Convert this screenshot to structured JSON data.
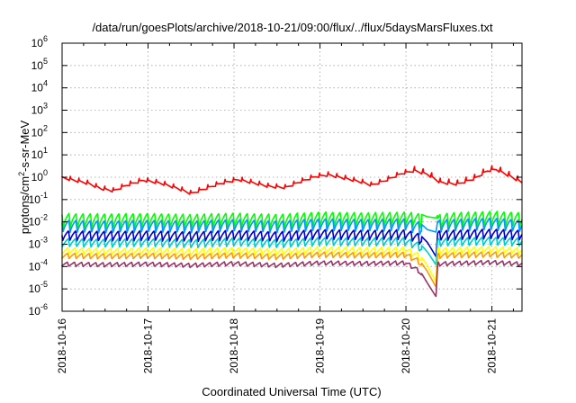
{
  "chart_data": {
    "type": "line",
    "title": "/data/run/goesPlots/archive/2018-10-21/09:00/flux/../flux/5daysMarsFluxes.txt",
    "xlabel": "Coordinated Universal Time (UTC)",
    "ylabel": {
      "base": "protons/cm",
      "sup": "2",
      "rest": "-s-sr-MeV"
    },
    "x_range": [
      "2018-10-16",
      "2018-10-21 09:00"
    ],
    "x_range_days": [
      0,
      5.35
    ],
    "x_tick_labels": [
      "2018-10-16",
      "2018-10-17",
      "2018-10-18",
      "2018-10-19",
      "2018-10-20",
      "2018-10-21"
    ],
    "x_tick_days": [
      0,
      1,
      2,
      3,
      4,
      5
    ],
    "y_scale": "log",
    "ylim": [
      1e-06,
      1000000
    ],
    "y_ticks": [
      {
        "base": "10",
        "exp": "-6"
      },
      {
        "base": "10",
        "exp": "-5"
      },
      {
        "base": "10",
        "exp": "-4"
      },
      {
        "base": "10",
        "exp": "-3"
      },
      {
        "base": "10",
        "exp": "-2"
      },
      {
        "base": "10",
        "exp": "-1"
      },
      {
        "base": "10",
        "exp": "0"
      },
      {
        "base": "10",
        "exp": "1"
      },
      {
        "base": "10",
        "exp": "2"
      },
      {
        "base": "10",
        "exp": "3"
      },
      {
        "base": "10",
        "exp": "4"
      },
      {
        "base": "10",
        "exp": "5"
      },
      {
        "base": "10",
        "exp": "6"
      }
    ],
    "grid": true,
    "series": [
      {
        "color": "#ff0000",
        "kind": "slow",
        "period_days": 0.1,
        "points": [
          [
            0,
            0.98
          ],
          [
            0.3,
            0.55
          ],
          [
            0.45,
            0.32
          ],
          [
            0.6,
            0.25
          ],
          [
            0.75,
            0.45
          ],
          [
            0.95,
            0.75
          ],
          [
            1.15,
            0.55
          ],
          [
            1.35,
            0.32
          ],
          [
            1.5,
            0.19
          ],
          [
            1.65,
            0.3
          ],
          [
            1.85,
            0.55
          ],
          [
            2.05,
            0.8
          ],
          [
            2.2,
            0.6
          ],
          [
            2.4,
            0.4
          ],
          [
            2.6,
            0.35
          ],
          [
            2.75,
            0.6
          ],
          [
            2.95,
            1.1
          ],
          [
            3.1,
            1.3
          ],
          [
            3.3,
            0.9
          ],
          [
            3.5,
            0.6
          ],
          [
            3.6,
            0.45
          ],
          [
            3.75,
            0.7
          ],
          [
            3.95,
            1.5
          ],
          [
            4.1,
            2.0
          ],
          [
            4.25,
            1.4
          ],
          [
            4.4,
            0.6
          ],
          [
            4.6,
            0.5
          ],
          [
            4.8,
            0.9
          ],
          [
            4.95,
            2.0
          ],
          [
            5.05,
            2.3
          ],
          [
            5.2,
            1.2
          ],
          [
            5.35,
            0.6
          ]
        ]
      },
      {
        "color": "#00ff00",
        "kind": "pulse",
        "period_days": 0.083,
        "points": [
          [
            0,
            0.024
          ],
          [
            0.5,
            0.023
          ],
          [
            1,
            0.024
          ],
          [
            1.5,
            0.022
          ],
          [
            2,
            0.025
          ],
          [
            2.5,
            0.022
          ],
          [
            3,
            0.028
          ],
          [
            3.5,
            0.026
          ],
          [
            4,
            0.028
          ],
          [
            4.15,
            0.024
          ],
          [
            4.25,
            0.017
          ],
          [
            4.35,
            0.015
          ],
          [
            4.37,
            0.02
          ],
          [
            4.5,
            0.026
          ],
          [
            5,
            0.03
          ],
          [
            5.35,
            0.026
          ]
        ]
      },
      {
        "color": "#0099ff",
        "kind": "pulse",
        "period_days": 0.083,
        "points": [
          [
            0,
            0.012
          ],
          [
            0.5,
            0.011
          ],
          [
            1,
            0.012
          ],
          [
            1.5,
            0.011
          ],
          [
            2,
            0.013
          ],
          [
            2.5,
            0.011
          ],
          [
            3,
            0.014
          ],
          [
            3.5,
            0.013
          ],
          [
            4,
            0.014
          ],
          [
            4.15,
            0.01
          ],
          [
            4.25,
            0.0045
          ],
          [
            4.35,
            0.0035
          ],
          [
            4.37,
            0.012
          ],
          [
            4.5,
            0.013
          ],
          [
            5,
            0.015
          ],
          [
            5.35,
            0.012
          ]
        ]
      },
      {
        "color": "#0000cc",
        "kind": "pulse",
        "period_days": 0.083,
        "points": [
          [
            0,
            0.004
          ],
          [
            0.5,
            0.0038
          ],
          [
            1,
            0.004
          ],
          [
            1.5,
            0.0036
          ],
          [
            2,
            0.0042
          ],
          [
            2.5,
            0.0036
          ],
          [
            3,
            0.0046
          ],
          [
            3.5,
            0.0042
          ],
          [
            4,
            0.0045
          ],
          [
            4.15,
            0.003
          ],
          [
            4.25,
            0.0012
          ],
          [
            4.35,
            0.00028
          ],
          [
            4.37,
            0.004
          ],
          [
            4.5,
            0.0042
          ],
          [
            5,
            0.0048
          ],
          [
            5.35,
            0.0042
          ]
        ]
      },
      {
        "color": "#00cccc",
        "kind": "pulse",
        "period_days": 0.083,
        "points": [
          [
            0,
            0.0018
          ],
          [
            0.5,
            0.0017
          ],
          [
            1,
            0.0018
          ],
          [
            1.5,
            0.0016
          ],
          [
            2,
            0.0019
          ],
          [
            2.5,
            0.0016
          ],
          [
            3,
            0.002
          ],
          [
            3.5,
            0.0019
          ],
          [
            4,
            0.002
          ],
          [
            4.15,
            0.0012
          ],
          [
            4.25,
            0.00045
          ],
          [
            4.35,
            0.00012
          ],
          [
            4.37,
            0.0018
          ],
          [
            4.5,
            0.0019
          ],
          [
            5,
            0.0021
          ],
          [
            5.35,
            0.0019
          ]
        ]
      },
      {
        "color": "#ffff00",
        "kind": "pulse",
        "period_days": 0.083,
        "points": [
          [
            0,
            0.0007
          ],
          [
            0.5,
            0.00065
          ],
          [
            1,
            0.0007
          ],
          [
            1.5,
            0.00063
          ],
          [
            2,
            0.00072
          ],
          [
            2.5,
            0.00062
          ],
          [
            3,
            0.00078
          ],
          [
            3.5,
            0.00072
          ],
          [
            4,
            0.00075
          ],
          [
            4.15,
            0.0004
          ],
          [
            4.25,
            0.00011
          ],
          [
            4.35,
            2e-05
          ],
          [
            4.37,
            0.0007
          ],
          [
            4.5,
            0.00072
          ],
          [
            5,
            0.0008
          ],
          [
            5.35,
            0.0007
          ]
        ]
      },
      {
        "color": "#ff9900",
        "kind": "pulse",
        "period_days": 0.083,
        "points": [
          [
            0,
            0.0004
          ],
          [
            0.5,
            0.00038
          ],
          [
            1,
            0.0004
          ],
          [
            1.5,
            0.00036
          ],
          [
            2,
            0.00042
          ],
          [
            2.5,
            0.00036
          ],
          [
            3,
            0.00045
          ],
          [
            3.5,
            0.00042
          ],
          [
            4,
            0.00044
          ],
          [
            4.15,
            0.00022
          ],
          [
            4.25,
            6e-05
          ],
          [
            4.35,
            1.2e-05
          ],
          [
            4.37,
            0.0004
          ],
          [
            4.5,
            0.00042
          ],
          [
            5,
            0.00046
          ],
          [
            5.35,
            0.0004
          ]
        ]
      },
      {
        "color": "#993366",
        "kind": "pulse",
        "period_days": 0.083,
        "points": [
          [
            0,
            0.00016
          ],
          [
            0.5,
            0.00015
          ],
          [
            1,
            0.00016
          ],
          [
            1.5,
            0.00014
          ],
          [
            2,
            0.00017
          ],
          [
            2.5,
            0.00014
          ],
          [
            3,
            0.00018
          ],
          [
            3.5,
            0.00017
          ],
          [
            4,
            0.00018
          ],
          [
            4.15,
            8e-05
          ],
          [
            4.25,
            1.8e-05
          ],
          [
            4.35,
            4.5e-06
          ],
          [
            4.37,
            0.00016
          ],
          [
            4.5,
            0.00017
          ],
          [
            5,
            0.00019
          ],
          [
            5.35,
            0.00016
          ]
        ]
      }
    ]
  }
}
